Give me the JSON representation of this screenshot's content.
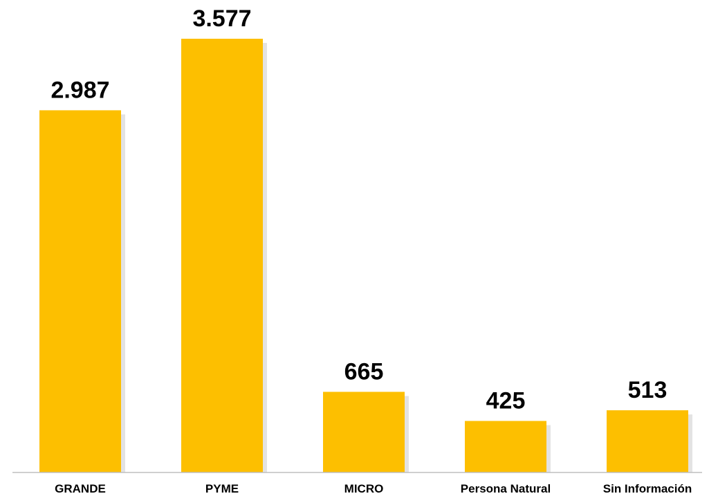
{
  "chart_data": {
    "type": "bar",
    "categories": [
      "GRANDE",
      "PYME",
      "MICRO",
      "Persona Natural",
      "Sin Información"
    ],
    "values": [
      2987,
      3577,
      665,
      425,
      513
    ],
    "value_labels": [
      "2.987",
      "3.577",
      "665",
      "425",
      "513"
    ],
    "title": "",
    "xlabel": "",
    "ylabel": "",
    "ylim": [
      0,
      3577
    ],
    "grid": false,
    "legend": "none",
    "bar_color": "#FDBF00",
    "shadow_color": "#E3E3E3",
    "axis_color": "#BFBFBF"
  }
}
